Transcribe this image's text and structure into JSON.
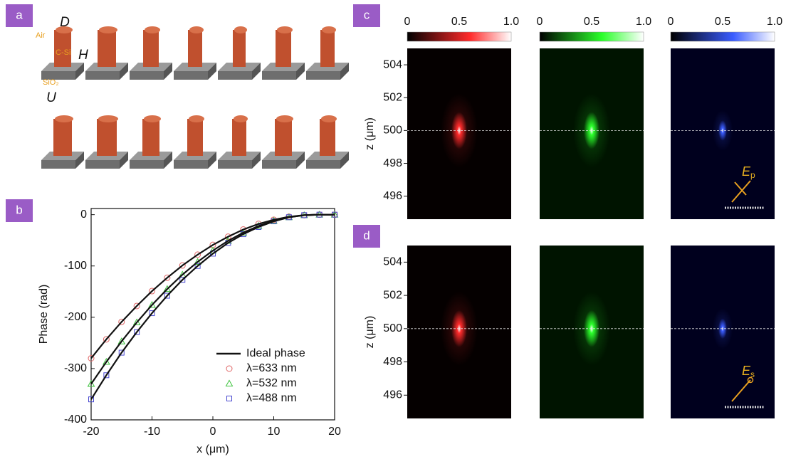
{
  "panel_labels": [
    "a",
    "b",
    "c",
    "d"
  ],
  "pillar_diagram": {
    "D": "D",
    "H": "H",
    "U": "U",
    "air": "Air",
    "core": "C-Si",
    "substrate": "SiO₂"
  },
  "chart_data": [
    {
      "type": "line",
      "xlabel": "x (μm)",
      "ylabel": "Phase (rad)",
      "x": [
        -20,
        -17.5,
        -15,
        -12.5,
        -10,
        -7.5,
        -5,
        -2.5,
        0,
        2.5,
        5,
        7.5,
        10,
        12.5,
        15,
        17.5,
        20
      ],
      "xlim": [
        -20,
        20
      ],
      "xticks": [
        -20,
        -10,
        0,
        10,
        20
      ],
      "ylim": [
        -400,
        12
      ],
      "yticks": [
        -400,
        -300,
        -200,
        -100,
        0
      ],
      "legend": "lower right",
      "series": [
        {
          "name": "Ideal phase",
          "color": "#111111",
          "marker": "line",
          "values": [
            -280,
            -243,
            -209,
            -178,
            -149,
            -123,
            -99,
            -78,
            -59,
            -43,
            -29,
            -18,
            -10,
            -4,
            -1,
            0,
            0
          ]
        },
        {
          "color": "#111111",
          "marker": "line",
          "values": [
            -330,
            -287,
            -247,
            -210,
            -176,
            -145,
            -117,
            -92,
            -70,
            -51,
            -35,
            -22,
            -12,
            -5,
            -1,
            0,
            0
          ]
        },
        {
          "color": "#111111",
          "marker": "line",
          "values": [
            -360,
            -313,
            -269,
            -229,
            -192,
            -158,
            -127,
            -100,
            -76,
            -55,
            -38,
            -24,
            -13,
            -5,
            -1,
            0,
            0
          ]
        },
        {
          "name": "λ=633 nm",
          "color": "#e06666",
          "marker": "circle",
          "values": [
            -280,
            -243,
            -209,
            -178,
            -149,
            -123,
            -99,
            -78,
            -59,
            -43,
            -29,
            -18,
            -10,
            -4,
            -1,
            0,
            0
          ]
        },
        {
          "name": "λ=532 nm",
          "color": "#3cc23c",
          "marker": "triangle",
          "values": [
            -330,
            -287,
            -247,
            -210,
            -176,
            -145,
            -117,
            -92,
            -70,
            -51,
            -35,
            -22,
            -12,
            -5,
            -1,
            0,
            0
          ]
        },
        {
          "name": "λ=488 nm",
          "color": "#4a4ad0",
          "marker": "square",
          "values": [
            -360,
            -313,
            -269,
            -229,
            -192,
            -158,
            -127,
            -100,
            -76,
            -55,
            -38,
            -24,
            -13,
            -5,
            -1,
            0,
            0
          ]
        }
      ]
    },
    {
      "type": "heatmap",
      "clim": [
        0,
        1
      ],
      "colorbar_ticks": [
        0,
        0.5,
        {
          "value": 1,
          "label": "1.0"
        }
      ],
      "ylabel": "z (μm)",
      "ylim": [
        494.6,
        505
      ],
      "yticks": [
        496,
        498,
        500,
        502,
        504
      ],
      "focus": 500,
      "maps": [
        {
          "color": "#ff2a2a"
        },
        {
          "color": "#2aff2a"
        },
        {
          "color": "#3a5cff"
        }
      ],
      "polarization": {
        "symbol": "E",
        "subscript": "p"
      }
    },
    {
      "type": "heatmap",
      "ylabel": "z (μm)",
      "ylim": [
        494.6,
        505
      ],
      "yticks": [
        496,
        498,
        500,
        502,
        504
      ],
      "focus": 500,
      "maps": [
        {
          "color": "#ff2a2a"
        },
        {
          "color": "#2aff2a"
        },
        {
          "color": "#3a5cff"
        }
      ],
      "polarization": {
        "symbol": "E",
        "subscript": "s"
      }
    }
  ]
}
